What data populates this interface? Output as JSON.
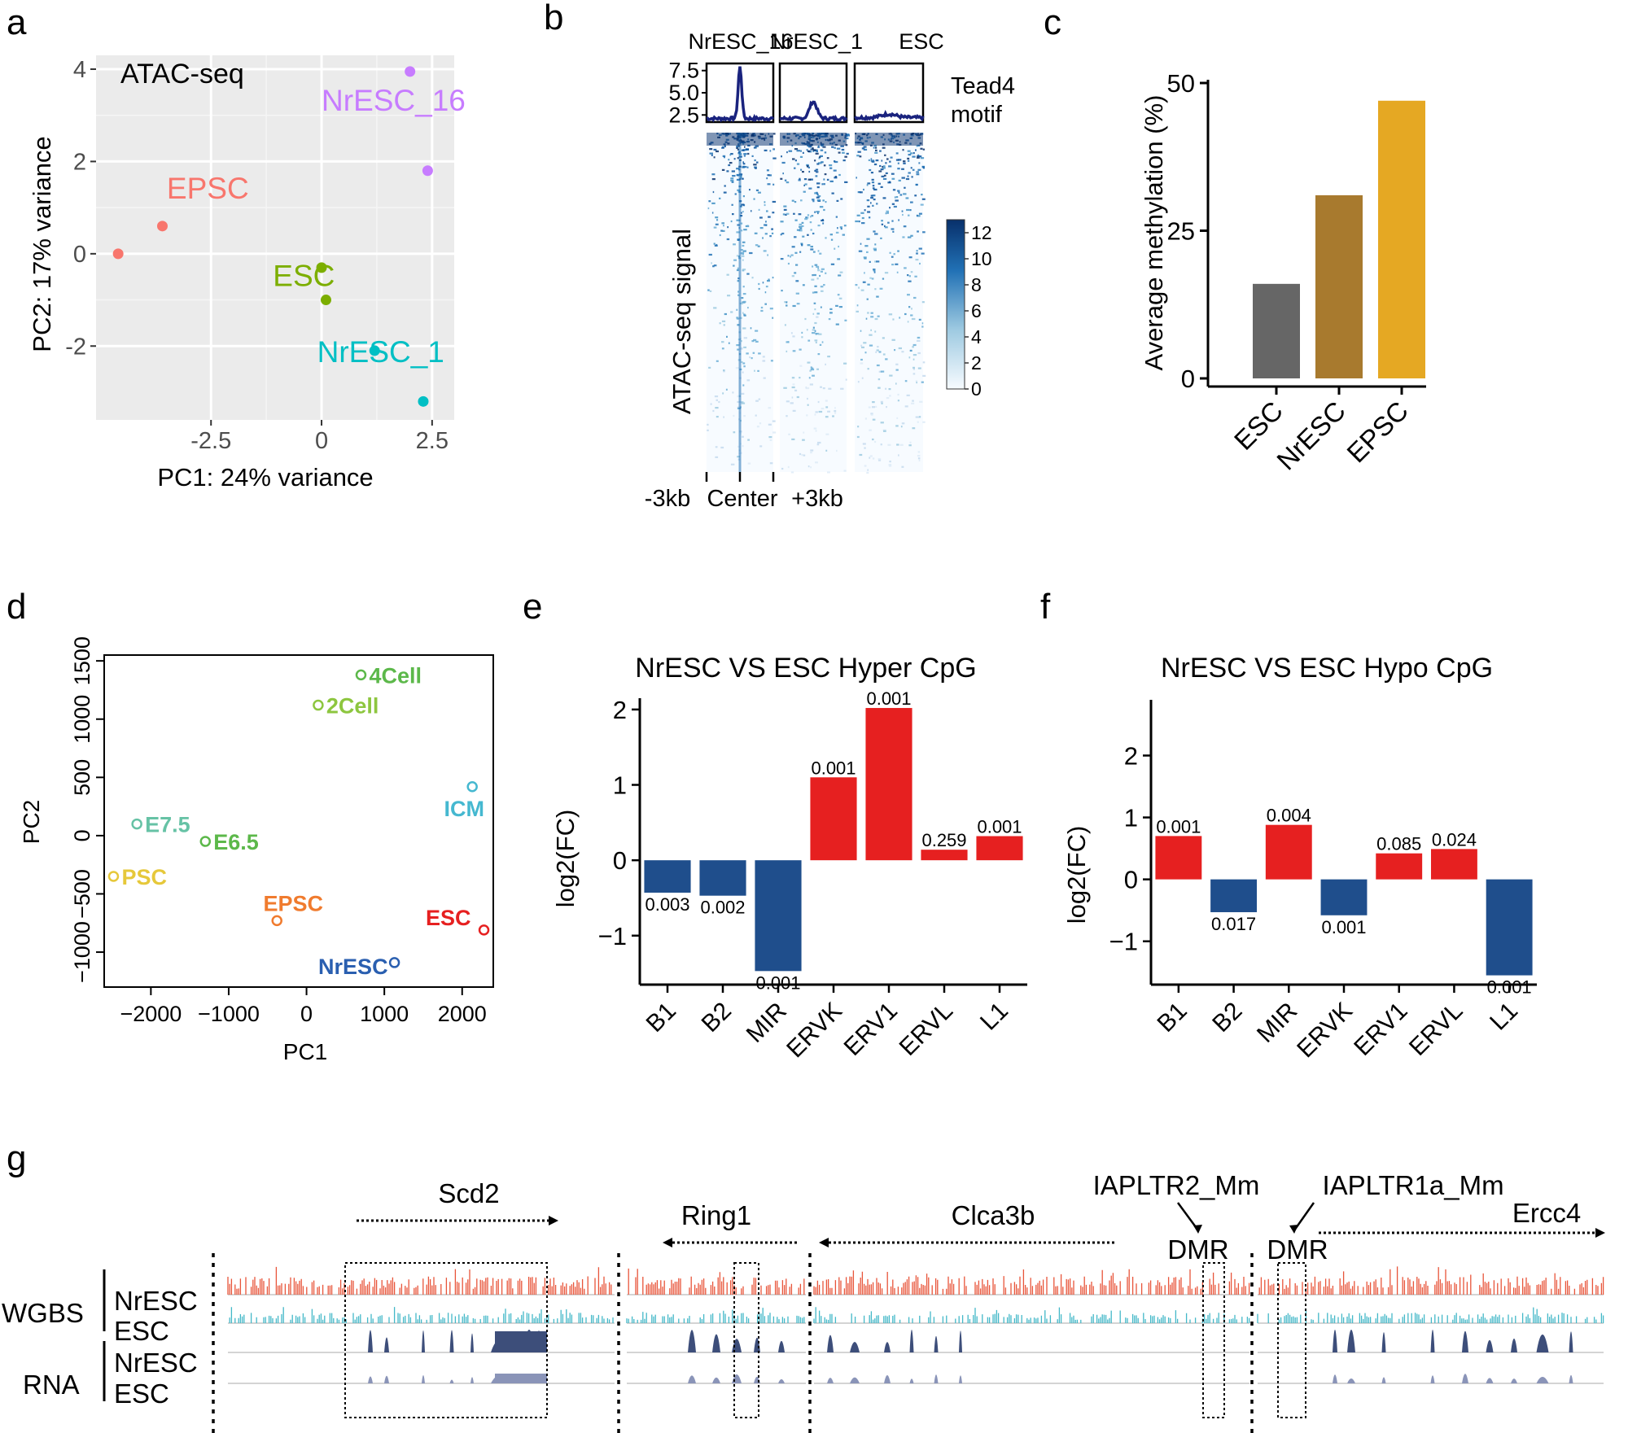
{
  "panel_labels": {
    "a": "a",
    "b": "b",
    "c": "c",
    "d": "d",
    "e": "e",
    "f": "f",
    "g": "g"
  },
  "colors": {
    "red": "#e62020",
    "blue": "#1f4e8c",
    "gray_bar": "#666666",
    "brown_bar": "#a87a2e",
    "gold_bar": "#e5a823",
    "wgbs_nr": "#e8553a",
    "wgbs_esc": "#43b8c8",
    "rna_nr": "#3d4e7a",
    "rna_esc": "#8a94b8",
    "heat_dark": "#08306b"
  },
  "chart_data": [
    {
      "id": "a",
      "type": "scatter",
      "title": "ATAC-seq",
      "xlabel": "PC1: 24% variance",
      "ylabel": "PC2: 17% variance",
      "xlim": [
        -5.1,
        3.0
      ],
      "ylim": [
        -3.6,
        4.3
      ],
      "xticks": [
        {
          "v": -2.5,
          "label": "-2.5"
        },
        {
          "v": 0,
          "label": "0"
        },
        {
          "v": 2.5,
          "label": "2.5"
        }
      ],
      "yticks": [
        {
          "v": -2,
          "label": "-2"
        },
        {
          "v": 0,
          "label": "0"
        },
        {
          "v": 2,
          "label": "2"
        },
        {
          "v": 4,
          "label": "4"
        }
      ],
      "grid": true,
      "groups": [
        {
          "name": "NrESC_16",
          "color": "#c77cff",
          "points": [
            [
              2.0,
              3.95
            ],
            [
              2.4,
              1.8
            ]
          ],
          "label_at": [
            0.0,
            3.1
          ]
        },
        {
          "name": "EPSC",
          "color": "#f8766d",
          "points": [
            [
              -3.6,
              0.6
            ],
            [
              -4.6,
              0.0
            ]
          ],
          "label_at": [
            -3.5,
            1.2
          ]
        },
        {
          "name": "ESC",
          "color": "#7cae00",
          "points": [
            [
              0.0,
              -0.3
            ],
            [
              0.1,
              -1.0
            ]
          ],
          "label_at": [
            -1.1,
            -0.7
          ]
        },
        {
          "name": "NrESC_1",
          "color": "#00bfc4",
          "points": [
            [
              1.2,
              -2.1
            ],
            [
              2.3,
              -3.2
            ]
          ],
          "label_at": [
            -0.1,
            -2.35
          ]
        }
      ]
    },
    {
      "id": "b",
      "type": "heatmap",
      "columns": [
        "NrESC_16",
        "NrESC_1",
        "ESC"
      ],
      "profile_label_1": "Tead4",
      "profile_label_2": "motif",
      "profile_yticks": [
        {
          "v": 2.5,
          "label": "2.5"
        },
        {
          "v": 5.0,
          "label": "5.0"
        },
        {
          "v": 7.5,
          "label": "7.5"
        }
      ],
      "profile_ylim": [
        1.7,
        8.3
      ],
      "profile_peaks": [
        7.9,
        4.0,
        2.6
      ],
      "profile_base": [
        2.1,
        2.1,
        2.2
      ],
      "ylabel": "ATAC-seq signal",
      "xticks": [
        "-3kb",
        "Center",
        "+3kb"
      ],
      "colorbar_ticks": [
        {
          "v": 0,
          "label": "0"
        },
        {
          "v": 2,
          "label": "2"
        },
        {
          "v": 4,
          "label": "4"
        },
        {
          "v": 6,
          "label": "6"
        },
        {
          "v": 8,
          "label": "8"
        },
        {
          "v": 10,
          "label": "10"
        },
        {
          "v": 12,
          "label": "12"
        }
      ],
      "colorbar_range": [
        0,
        13
      ]
    },
    {
      "id": "c",
      "type": "bar",
      "ylabel": "Average methylation (%)",
      "categories": [
        "ESC",
        "NrESC",
        "EPSC"
      ],
      "values": [
        16,
        31,
        47
      ],
      "colors": [
        "#666666",
        "#a87a2e",
        "#e5a823"
      ],
      "ylim": [
        0,
        50
      ],
      "yticks": [
        {
          "v": 0,
          "label": "0"
        },
        {
          "v": 25,
          "label": "25"
        },
        {
          "v": 50,
          "label": "50"
        }
      ]
    },
    {
      "id": "d",
      "type": "scatter",
      "xlabel": "PC1",
      "ylabel": "PC2",
      "xlim": [
        -2600,
        2400
      ],
      "ylim": [
        -1300,
        1550
      ],
      "xticks": [
        {
          "v": -2000,
          "label": "−2000"
        },
        {
          "v": -1000,
          "label": "−1000"
        },
        {
          "v": 0,
          "label": "0"
        },
        {
          "v": 1000,
          "label": "1000"
        },
        {
          "v": 2000,
          "label": "2000"
        }
      ],
      "yticks": [
        {
          "v": -1000,
          "label": "−1000"
        },
        {
          "v": -500,
          "label": "−500"
        },
        {
          "v": 0,
          "label": "0"
        },
        {
          "v": 500,
          "label": "500"
        },
        {
          "v": 1000,
          "label": "1000"
        },
        {
          "v": 1500,
          "label": "1500"
        }
      ],
      "points": [
        {
          "name": "4Cell",
          "x": 700,
          "y": 1380,
          "color": "#5cb84a"
        },
        {
          "name": "2Cell",
          "x": 150,
          "y": 1120,
          "color": "#8dc63f"
        },
        {
          "name": "ICM",
          "x": 2130,
          "y": 420,
          "color": "#45b8d0"
        },
        {
          "name": "E7.5",
          "x": -2180,
          "y": 100,
          "color": "#66c2a5"
        },
        {
          "name": "E6.5",
          "x": -1300,
          "y": -50,
          "color": "#5cb84a"
        },
        {
          "name": "PSC",
          "x": -2480,
          "y": -350,
          "color": "#e6c83a"
        },
        {
          "name": "EPSC",
          "x": -380,
          "y": -730,
          "color": "#f07b2e"
        },
        {
          "name": "ESC",
          "x": 2280,
          "y": -810,
          "color": "#e62020"
        },
        {
          "name": "NrESC",
          "x": 1130,
          "y": -1090,
          "color": "#2a5fb0"
        }
      ]
    },
    {
      "id": "e",
      "type": "bar",
      "title": "NrESC VS ESC Hyper CpG",
      "ylabel": "log2(FC)",
      "categories": [
        "B1",
        "B2",
        "MIR",
        "ERVK",
        "ERV1",
        "ERVL",
        "L1"
      ],
      "values": [
        -0.43,
        -0.47,
        -1.47,
        1.1,
        2.02,
        0.14,
        0.32
      ],
      "pvalues": [
        "0.003",
        "0.002",
        "0.001",
        "0.001",
        "0.001",
        "0.259",
        "0.001"
      ],
      "ylim": [
        -1.65,
        2.15
      ],
      "yticks": [
        {
          "v": -1,
          "label": "−1"
        },
        {
          "v": 0,
          "label": "0"
        },
        {
          "v": 1,
          "label": "1"
        },
        {
          "v": 2,
          "label": "2"
        }
      ]
    },
    {
      "id": "f",
      "type": "bar",
      "title": "NrESC VS ESC Hypo CpG",
      "ylabel": "log2(FC)",
      "categories": [
        "B1",
        "B2",
        "MIR",
        "ERVK",
        "ERV1",
        "ERVL",
        "L1"
      ],
      "values": [
        0.7,
        -0.53,
        0.88,
        -0.58,
        0.42,
        0.49,
        -1.55
      ],
      "pvalues": [
        "0.001",
        "0.017",
        "0.004",
        "0.001",
        "0.085",
        "0.024",
        "0.001"
      ],
      "ylim": [
        -1.7,
        2.9
      ],
      "yticks": [
        {
          "v": -1,
          "label": "−1"
        },
        {
          "v": 0,
          "label": "0"
        },
        {
          "v": 1,
          "label": "1"
        },
        {
          "v": 2,
          "label": "2"
        }
      ]
    },
    {
      "id": "g",
      "type": "tracks",
      "genes": [
        {
          "name": "Scd2",
          "direction": "right"
        },
        {
          "name": "Ring1",
          "direction": "left"
        },
        {
          "name": "Clca3b",
          "direction": "left"
        },
        {
          "name": "Ercc4",
          "direction": "right"
        }
      ],
      "annotations": [
        {
          "title": "IAPLTR2_Mm",
          "label": "DMR"
        },
        {
          "title": "IAPLTR1a_Mm",
          "label": "DMR"
        }
      ],
      "track_groups": [
        {
          "name": "WGBS",
          "tracks": [
            "NrESC",
            "ESC"
          ]
        },
        {
          "name": "RNA",
          "tracks": [
            "NrESC",
            "ESC"
          ]
        }
      ]
    }
  ]
}
